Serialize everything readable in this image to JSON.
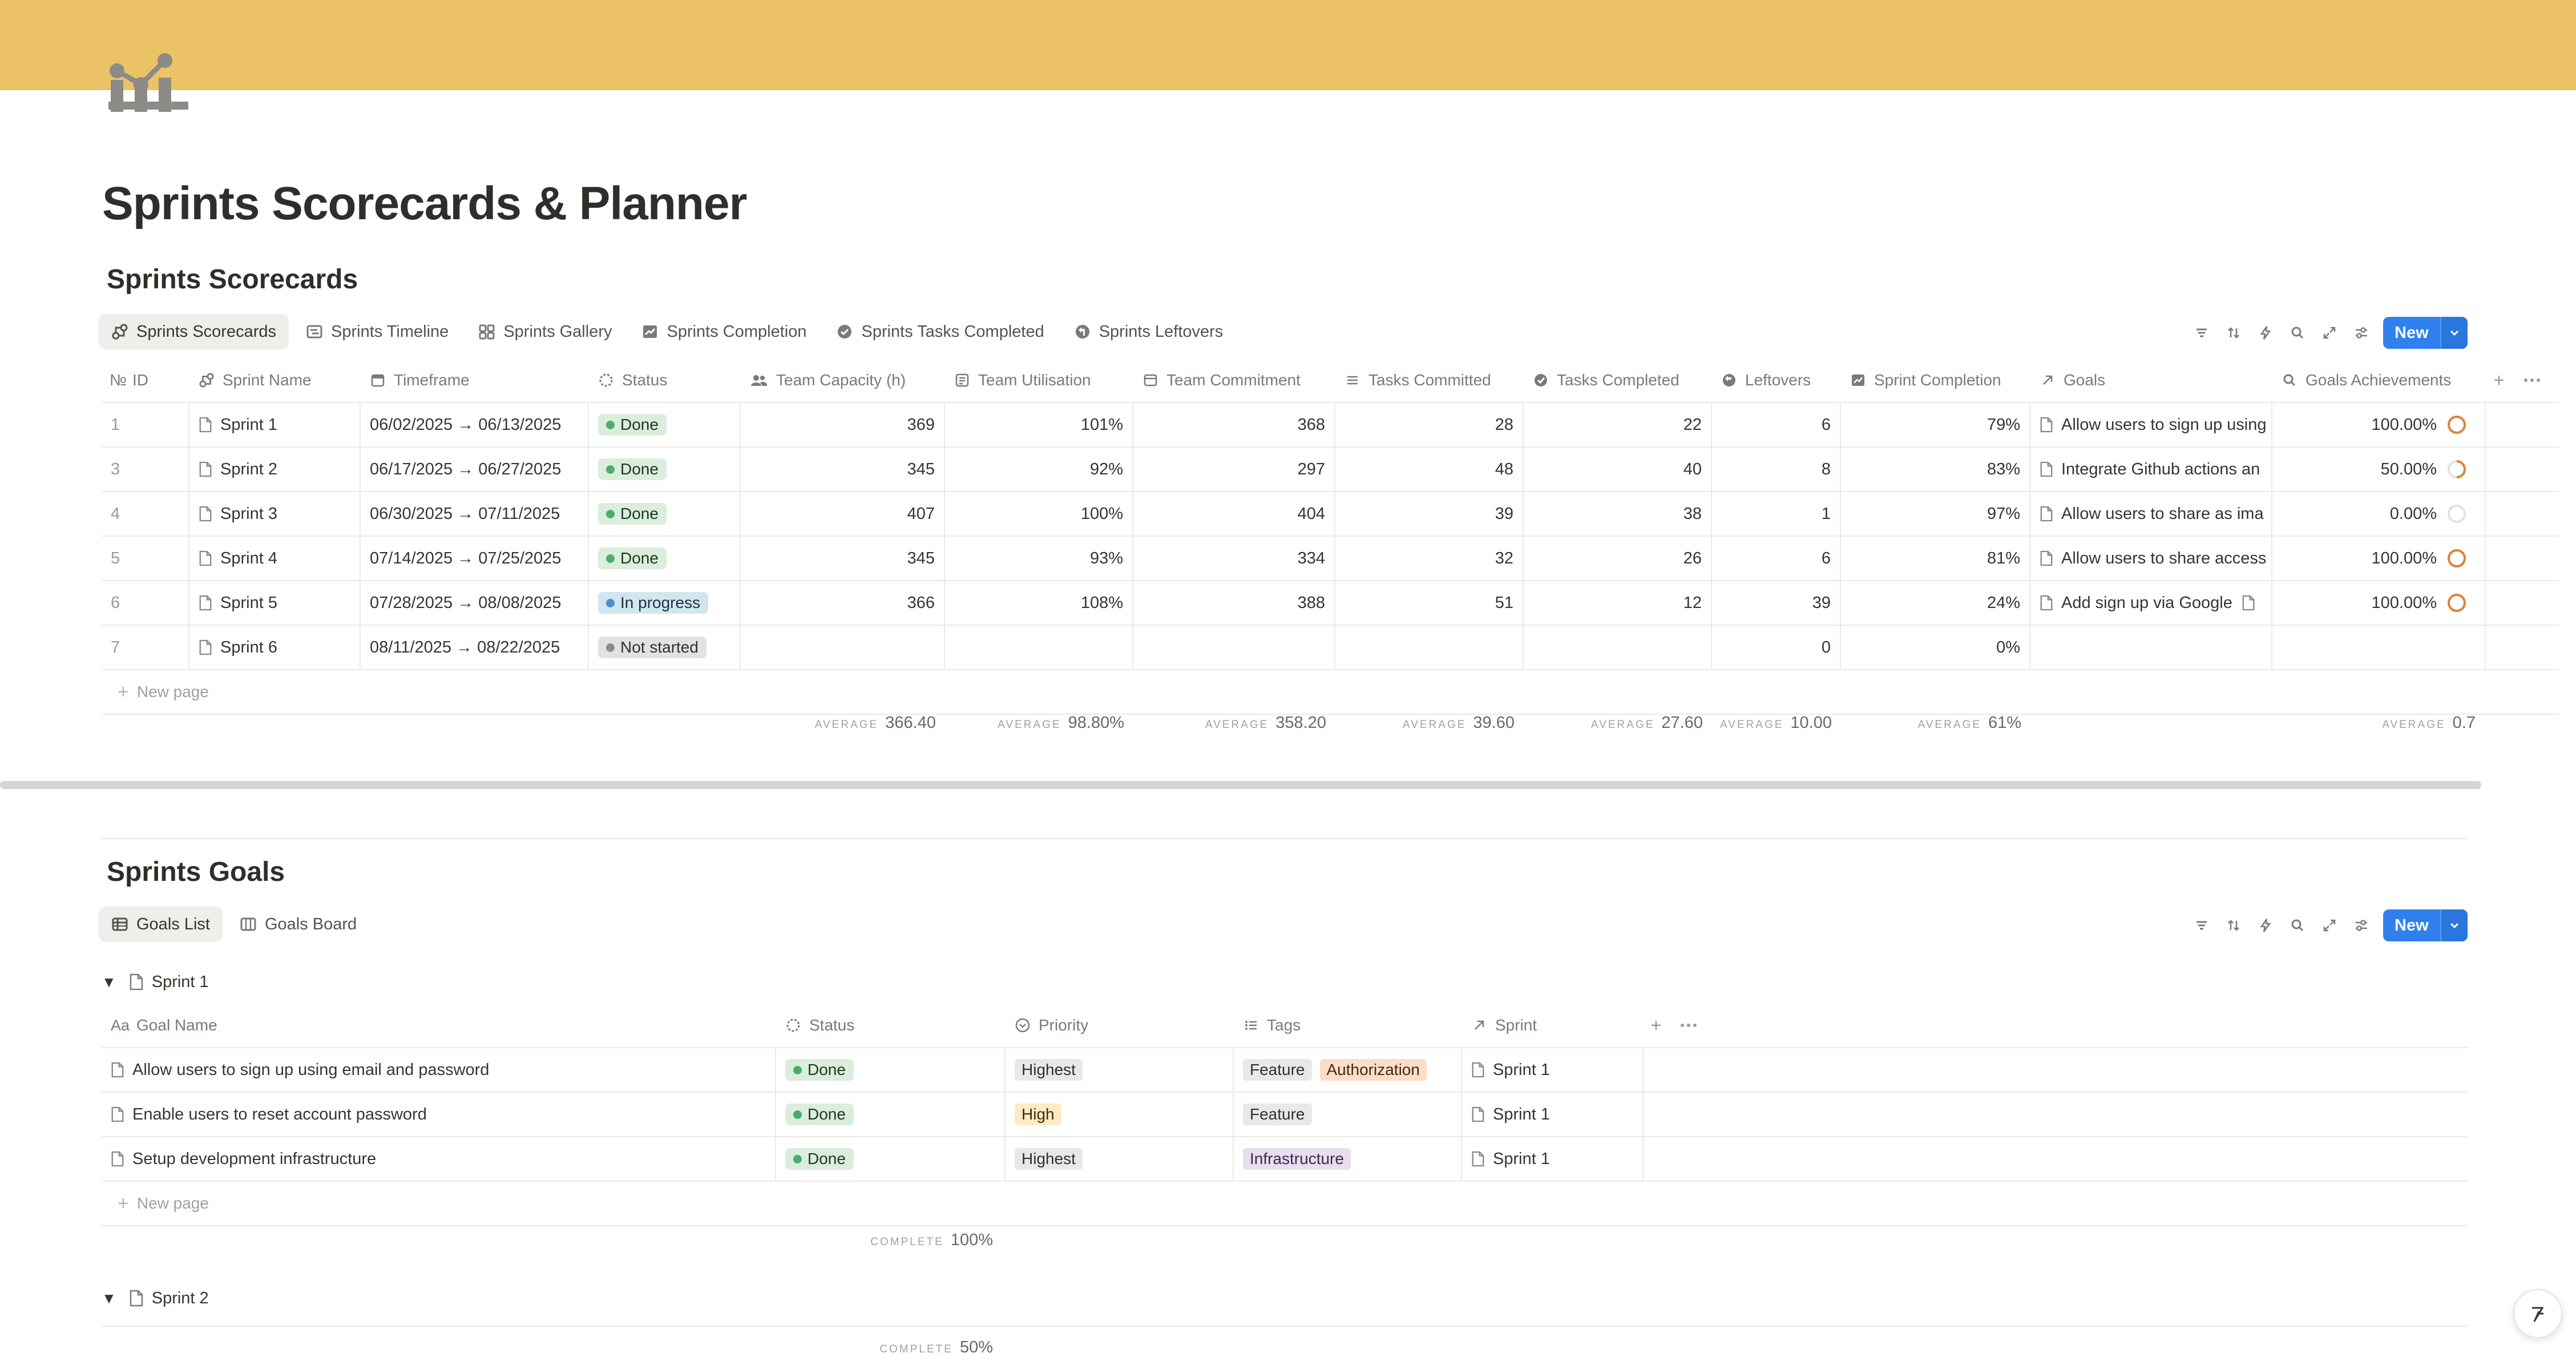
{
  "page": {
    "title": "Sprints Scorecards & Planner"
  },
  "colors": {
    "banner": "#ecc266",
    "accent": "#2f80ed"
  },
  "scorecards": {
    "title": "Sprints Scorecards",
    "tabs": [
      {
        "label": "Sprints Scorecards",
        "icon": "scorecard-icon",
        "active": true
      },
      {
        "label": "Sprints Timeline",
        "icon": "timeline-icon"
      },
      {
        "label": "Sprints Gallery",
        "icon": "gallery-icon"
      },
      {
        "label": "Sprints Completion",
        "icon": "chart-icon"
      },
      {
        "label": "Sprints Tasks Completed",
        "icon": "check-circle-icon"
      },
      {
        "label": "Sprints Leftovers",
        "icon": "arrow-circle-icon"
      }
    ],
    "new_label": "New",
    "columns": [
      "ID",
      "Sprint Name",
      "Timeframe",
      "Status",
      "Team Capacity (h)",
      "Team Utilisation",
      "Team Commitment",
      "Tasks Committed",
      "Tasks Completed",
      "Leftovers",
      "Sprint Completion",
      "Goals",
      "Goals Achievements"
    ],
    "id_prefix": "№",
    "rows": [
      {
        "id": "1",
        "name": "Sprint 1",
        "timeframe": "06/02/2025 → 06/13/2025",
        "status": "Done",
        "capacity": "369",
        "utilisation": "101%",
        "commitment": "368",
        "committed": "28",
        "completed": "22",
        "leftovers": "6",
        "completion": "79%",
        "goals": "Allow users to sign up using",
        "achievement": "100.00%",
        "achievement_value": 1.0
      },
      {
        "id": "3",
        "name": "Sprint 2",
        "timeframe": "06/17/2025 → 06/27/2025",
        "status": "Done",
        "capacity": "345",
        "utilisation": "92%",
        "commitment": "297",
        "committed": "48",
        "completed": "40",
        "leftovers": "8",
        "completion": "83%",
        "goals": "Integrate Github actions an",
        "achievement": "50.00%",
        "achievement_value": 0.5
      },
      {
        "id": "4",
        "name": "Sprint 3",
        "timeframe": "06/30/2025 → 07/11/2025",
        "status": "Done",
        "capacity": "407",
        "utilisation": "100%",
        "commitment": "404",
        "committed": "39",
        "completed": "38",
        "leftovers": "1",
        "completion": "97%",
        "goals": "Allow users to share as ima",
        "achievement": "0.00%",
        "achievement_value": 0.0
      },
      {
        "id": "5",
        "name": "Sprint 4",
        "timeframe": "07/14/2025 → 07/25/2025",
        "status": "Done",
        "capacity": "345",
        "utilisation": "93%",
        "commitment": "334",
        "committed": "32",
        "completed": "26",
        "leftovers": "6",
        "completion": "81%",
        "goals": "Allow users to share access",
        "achievement": "100.00%",
        "achievement_value": 1.0
      },
      {
        "id": "6",
        "name": "Sprint 5",
        "timeframe": "07/28/2025 → 08/08/2025",
        "status": "In progress",
        "capacity": "366",
        "utilisation": "108%",
        "commitment": "388",
        "committed": "51",
        "completed": "12",
        "leftovers": "39",
        "completion": "24%",
        "goals": "Add sign up via Google",
        "achievement": "100.00%",
        "achievement_value": 1.0
      },
      {
        "id": "7",
        "name": "Sprint 6",
        "timeframe": "08/11/2025 → 08/22/2025",
        "status": "Not started",
        "capacity": "",
        "utilisation": "",
        "commitment": "",
        "committed": "",
        "completed": "",
        "leftovers": "0",
        "completion": "0%",
        "goals": "",
        "achievement": "",
        "achievement_value": null
      }
    ],
    "new_page_label": "New page",
    "aggregates": {
      "label": "AVERAGE",
      "capacity": "366.40",
      "utilisation": "98.80%",
      "commitment": "358.20",
      "committed": "39.60",
      "completed": "27.60",
      "leftovers": "10.00",
      "completion": "61%",
      "achievement": "0.7"
    }
  },
  "goals": {
    "title": "Sprints Goals",
    "tabs": [
      {
        "label": "Goals List",
        "icon": "table-icon",
        "active": true
      },
      {
        "label": "Goals Board",
        "icon": "board-icon"
      }
    ],
    "new_label": "New",
    "columns": [
      "Goal Name",
      "Status",
      "Priority",
      "Tags",
      "Sprint"
    ],
    "groups": [
      {
        "name": "Sprint 1",
        "rows": [
          {
            "name": "Allow users to sign up using email and password",
            "status": "Done",
            "priority": "Highest",
            "tags": [
              "Feature",
              "Authorization"
            ],
            "sprint": "Sprint 1"
          },
          {
            "name": "Enable users to reset account password",
            "status": "Done",
            "priority": "High",
            "tags": [
              "Feature"
            ],
            "sprint": "Sprint 1"
          },
          {
            "name": "Setup development infrastructure",
            "status": "Done",
            "priority": "Highest",
            "tags": [
              "Infrastructure"
            ],
            "sprint": "Sprint 1"
          }
        ],
        "new_page_label": "New page",
        "agg_label": "COMPLETE",
        "agg_value": "100%"
      },
      {
        "name": "Sprint 2",
        "agg_label": "COMPLETE",
        "agg_value": "50%"
      }
    ]
  }
}
